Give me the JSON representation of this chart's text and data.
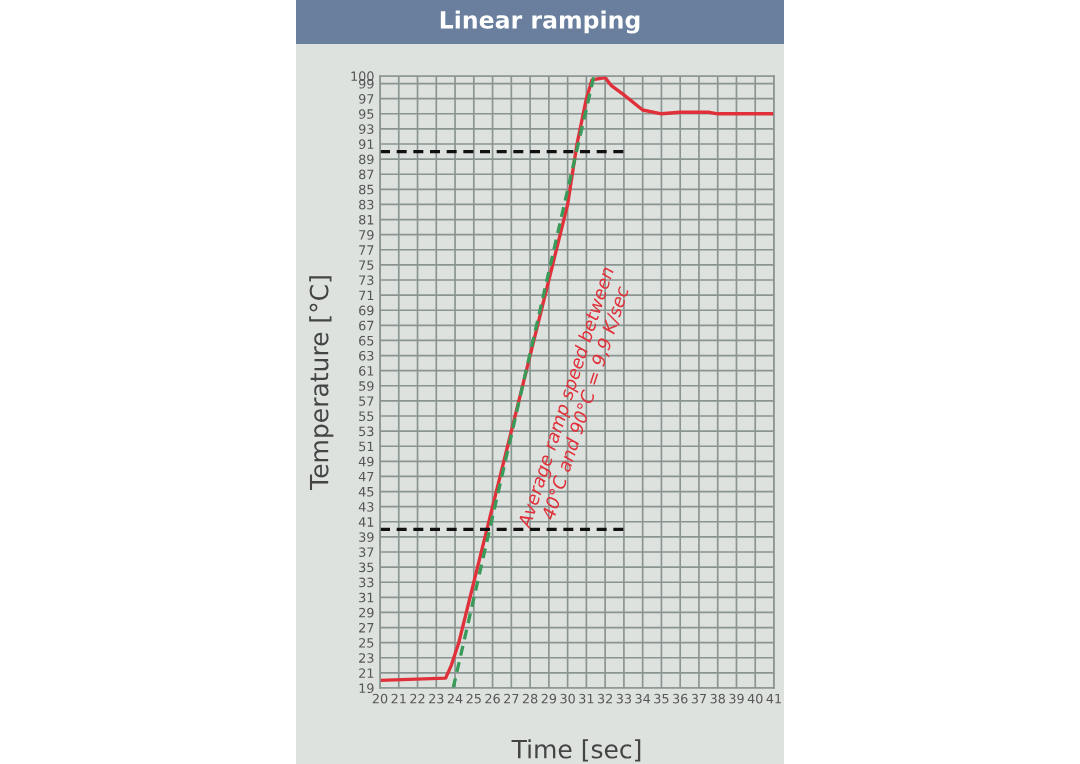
{
  "chart_data": {
    "type": "line",
    "title": "Linear ramping",
    "xlabel": "Time [sec]",
    "ylabel": "Temperature [°C]",
    "x": [
      20,
      23.5,
      23.8,
      24.2,
      25,
      26,
      27,
      28,
      29,
      30,
      30.5,
      31,
      31.3,
      32,
      32.3,
      33,
      34,
      35,
      36,
      37.5,
      38,
      41
    ],
    "series": [
      {
        "color": "#e0303a",
        "values": [
          20,
          20.3,
          22,
          25,
          33,
          43,
          53,
          63,
          73,
          83,
          91,
          97,
          99.5,
          99.8,
          98.8,
          97.5,
          95.5,
          95,
          95.2,
          95.2,
          95,
          95
        ]
      },
      {
        "color": "#3a9a5a",
        "x": [
          23.9,
          31.4
        ],
        "values": [
          19,
          100
        ],
        "line_style": "dashed"
      },
      {
        "color": "#111111",
        "x": [
          20,
          33
        ],
        "values": [
          40,
          40
        ],
        "line_style": "dashed"
      },
      {
        "color": "#111111",
        "x": [
          20,
          33
        ],
        "values": [
          90,
          90
        ],
        "line_style": "dashed"
      }
    ],
    "xlim": [
      20,
      41
    ],
    "xticks": [
      20,
      21,
      22,
      23,
      24,
      25,
      26,
      27,
      28,
      29,
      30,
      31,
      32,
      33,
      34,
      35,
      36,
      37,
      38,
      39,
      40,
      41
    ],
    "ylim": [
      19,
      100
    ],
    "yticks": [
      19,
      21,
      23,
      25,
      27,
      29,
      31,
      33,
      35,
      37,
      39,
      41,
      43,
      45,
      47,
      49,
      51,
      53,
      55,
      57,
      59,
      61,
      63,
      65,
      67,
      69,
      71,
      73,
      75,
      77,
      79,
      81,
      83,
      85,
      87,
      89,
      91,
      93,
      95,
      97,
      99,
      100
    ],
    "grid": true,
    "annotations": [
      "Average ramp speed between\n40°C and 90°C = 9,9 K/sec"
    ]
  }
}
